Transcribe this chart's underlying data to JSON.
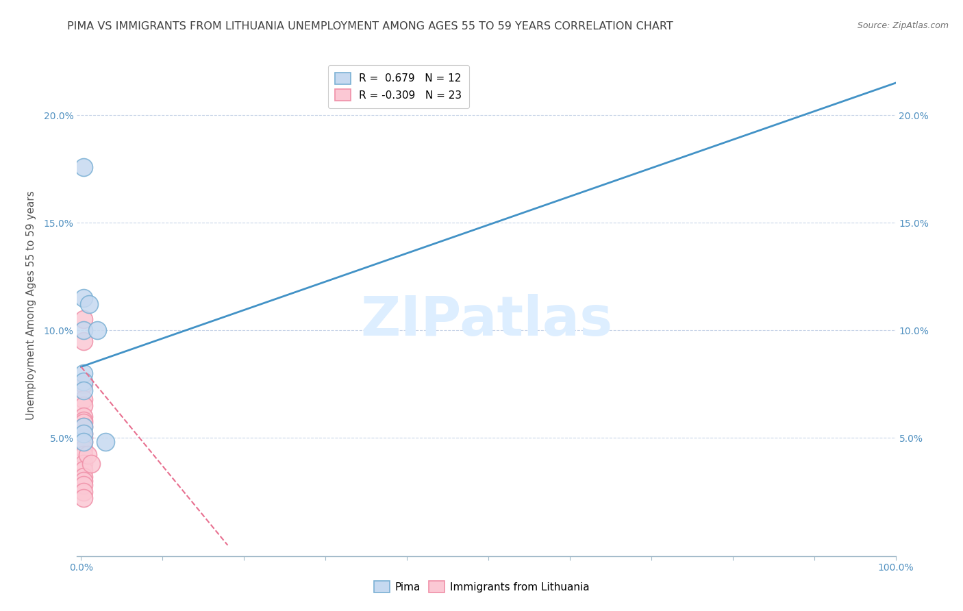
{
  "title": "PIMA VS IMMIGRANTS FROM LITHUANIA UNEMPLOYMENT AMONG AGES 55 TO 59 YEARS CORRELATION CHART",
  "source": "Source: ZipAtlas.com",
  "ylabel": "Unemployment Among Ages 55 to 59 years",
  "x_tick_labels_ends": [
    "0.0%",
    "100.0%"
  ],
  "x_tick_values": [
    0,
    0.1,
    0.2,
    0.3,
    0.4,
    0.5,
    0.6,
    0.7,
    0.8,
    0.9,
    1.0
  ],
  "y_tick_labels": [
    "5.0%",
    "10.0%",
    "15.0%",
    "20.0%"
  ],
  "y_tick_values": [
    0.05,
    0.1,
    0.15,
    0.2
  ],
  "xlim": [
    -0.005,
    1.0
  ],
  "ylim": [
    -0.005,
    0.228
  ],
  "legend_entries": [
    {
      "label": "R =  0.679   N = 12",
      "color": "#a8c4e0"
    },
    {
      "label": "R = -0.309   N = 23",
      "color": "#f4a0b0"
    }
  ],
  "series_names": [
    "Pima",
    "Immigrants from Lithuania"
  ],
  "watermark_text": "ZIPatlas",
  "watermark_color": "#ddeeff",
  "pima_x_actual": [
    0.003,
    0.003,
    0.003,
    0.003,
    0.003,
    0.003,
    0.003,
    0.003,
    0.003,
    0.01,
    0.02,
    0.03
  ],
  "pima_y_actual": [
    0.176,
    0.115,
    0.1,
    0.08,
    0.076,
    0.072,
    0.055,
    0.052,
    0.048,
    0.112,
    0.1,
    0.048
  ],
  "lith_x_actual": [
    0.003,
    0.003,
    0.003,
    0.003,
    0.003,
    0.003,
    0.003,
    0.003,
    0.003,
    0.003,
    0.003,
    0.003,
    0.003,
    0.003,
    0.003,
    0.003,
    0.003,
    0.003,
    0.003,
    0.003,
    0.003,
    0.008,
    0.012
  ],
  "lith_y_actual": [
    0.105,
    0.095,
    0.075,
    0.068,
    0.065,
    0.06,
    0.058,
    0.057,
    0.055,
    0.052,
    0.05,
    0.048,
    0.045,
    0.042,
    0.038,
    0.035,
    0.032,
    0.03,
    0.028,
    0.025,
    0.022,
    0.042,
    0.038
  ],
  "pima_trendline_x": [
    0.0,
    1.0
  ],
  "pima_trendline_y": [
    0.083,
    0.215
  ],
  "lith_trendline_x": [
    0.0,
    0.18
  ],
  "lith_trendline_y": [
    0.083,
    0.0
  ],
  "background_color": "#ffffff",
  "grid_color": "#c8d4e8",
  "title_color": "#404040",
  "tick_label_color": "#5090c0",
  "axis_tick_color": "#a0b8c8",
  "pima_face": "#c6d9f0",
  "pima_edge": "#7ab0d4",
  "lith_face": "#fbc8d4",
  "lith_edge": "#f090a8",
  "trend_blue": "#4292c6",
  "trend_pink": "#e87090"
}
